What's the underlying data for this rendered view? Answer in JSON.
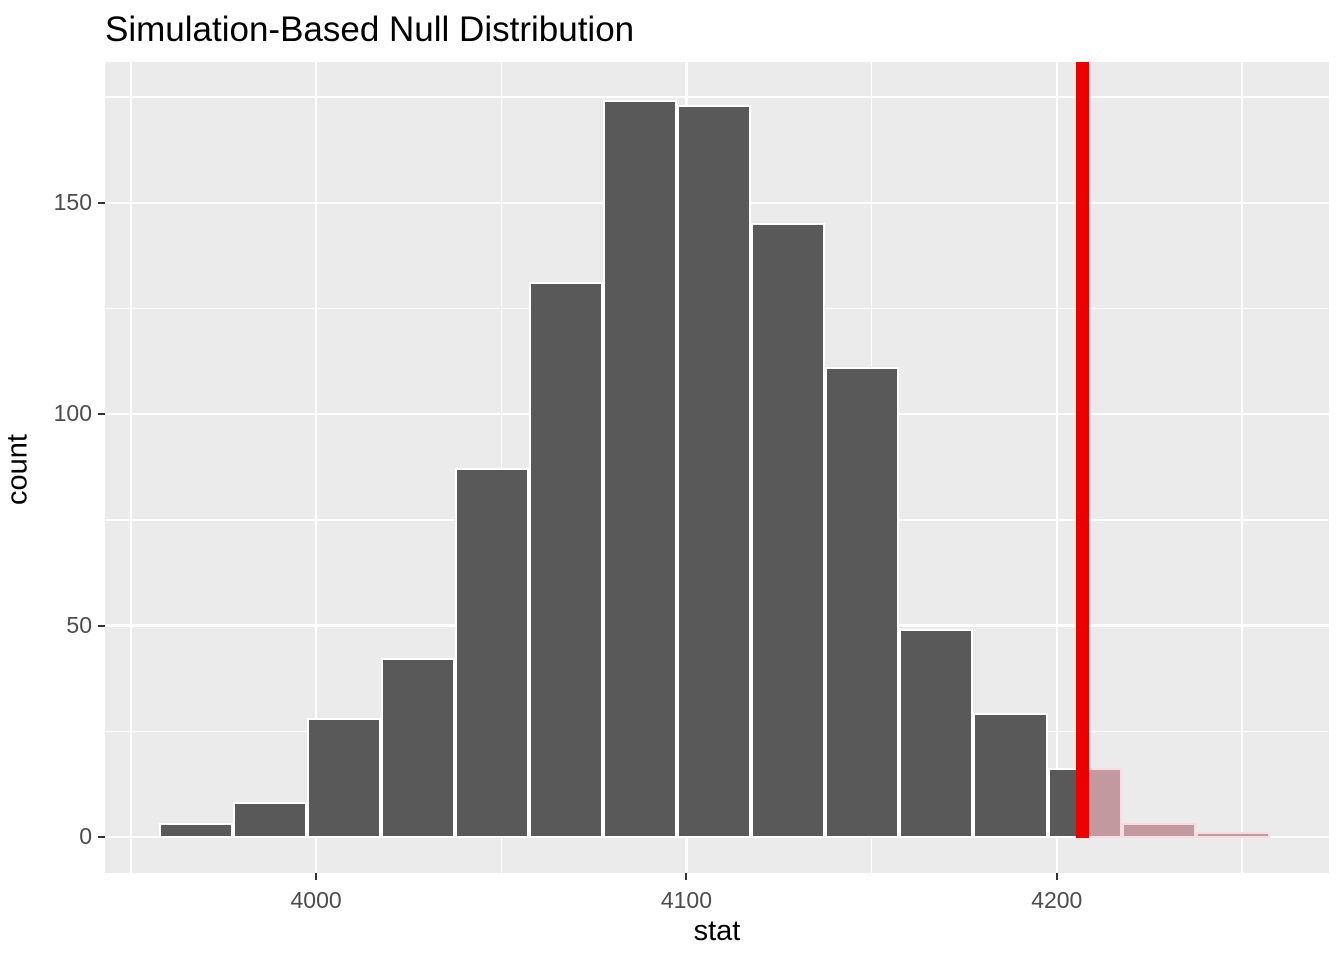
{
  "title": "Simulation-Based Null Distribution",
  "chart_data": {
    "type": "bar",
    "subtype": "histogram",
    "title": "Simulation-Based Null Distribution",
    "xlabel": "stat",
    "ylabel": "count",
    "x_ticks": [
      "4000",
      "4100",
      "4200"
    ],
    "x_tick_values": [
      4000,
      4100,
      4200
    ],
    "x_minor_tick_values": [
      3950,
      4050,
      4150,
      4250
    ],
    "y_ticks": [
      "0",
      "50",
      "100",
      "150"
    ],
    "y_tick_values": [
      0,
      50,
      100,
      150
    ],
    "y_minor_tick_values": [
      25,
      75,
      125,
      175
    ],
    "xlim": [
      3943,
      4273.5
    ],
    "ylim": [
      -8.5,
      183.3
    ],
    "grid": "on",
    "legend_position": "none",
    "bin_start": 3957.5,
    "bin_width": 20,
    "bin_centers": [
      3967.5,
      3987.5,
      4007.5,
      4027.5,
      4047.5,
      4067.5,
      4087.5,
      4107.5,
      4127.5,
      4147.5,
      4167.5,
      4187.5,
      4207.5,
      4227.5,
      4247.5
    ],
    "values": [
      3,
      8,
      28,
      42,
      87,
      131,
      174,
      173,
      145,
      111,
      49,
      29,
      16,
      3,
      1
    ],
    "total_simulations": 1000,
    "observed_stat": 4207,
    "shade_direction": "greater",
    "colors": {
      "panel_background": "#EBEBEB",
      "gridline": "#FFFFFF",
      "bar_fill": "#595959",
      "bar_border": "#FFFFFF",
      "shaded_bar_fill": "#C2999F",
      "shaded_bar_border": "#F7DCE1",
      "observed_line": "#EC0000",
      "tick_text": "#4D4D4D",
      "tick_mark": "#333333",
      "title_text": "#000000"
    }
  }
}
